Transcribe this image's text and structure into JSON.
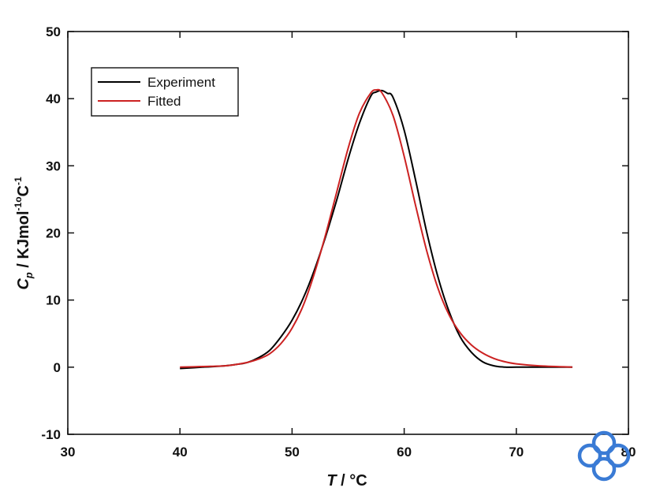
{
  "chart_data": {
    "type": "line",
    "xlabel": {
      "var": "T",
      "unit": " / °C"
    },
    "ylabel": {
      "var": "C",
      "sub": "p",
      "unit": " / KJmol",
      "sup1": "-1",
      "mid": "o",
      "unit2": "C",
      "sup2": "-1"
    },
    "xlim": [
      30,
      80
    ],
    "ylim": [
      -10,
      50
    ],
    "xticks": [
      30,
      40,
      50,
      60,
      70,
      80
    ],
    "yticks": [
      -10,
      0,
      10,
      20,
      30,
      40,
      50
    ],
    "xtick_labels": [
      "30",
      "40",
      "50",
      "60",
      "70",
      "80"
    ],
    "ytick_labels": [
      "-10",
      "0",
      "10",
      "20",
      "30",
      "40",
      "50"
    ],
    "grid": false,
    "legend_position": "top-left",
    "series": [
      {
        "name": "Experiment",
        "color": "#000000",
        "x": [
          40,
          42,
          44,
          45,
          46,
          47,
          48,
          49,
          50,
          51,
          52,
          53,
          54,
          55,
          56,
          57,
          57.5,
          58,
          58.5,
          59,
          60,
          61,
          62,
          63,
          64,
          65,
          66,
          67,
          68,
          69,
          70,
          72,
          75
        ],
        "y": [
          -0.2,
          0,
          0.2,
          0.4,
          0.7,
          1.4,
          2.5,
          4.5,
          7,
          10.3,
          14.5,
          19.5,
          25,
          31,
          36.3,
          40.3,
          41,
          41.2,
          40.8,
          40.2,
          35.3,
          28,
          20.2,
          13.5,
          8.3,
          4.5,
          2.2,
          0.8,
          0.2,
          0,
          0,
          0,
          0
        ]
      },
      {
        "name": "Fitted",
        "color": "#cc2222",
        "x": [
          40,
          42,
          44,
          45,
          46,
          47,
          48,
          49,
          50,
          51,
          52,
          53,
          54,
          55,
          56,
          57,
          57.5,
          58,
          59,
          60,
          61,
          62,
          63,
          64,
          65,
          66,
          67,
          68,
          69,
          70,
          72,
          75
        ],
        "y": [
          0,
          0.1,
          0.2,
          0.4,
          0.7,
          1.2,
          2,
          3.5,
          5.8,
          9.2,
          14,
          19.8,
          26.2,
          32.6,
          37.8,
          40.8,
          41.3,
          40.9,
          37.5,
          31.4,
          24.2,
          17.4,
          11.8,
          7.8,
          5.1,
          3.3,
          2.1,
          1.3,
          0.8,
          0.5,
          0.2,
          0
        ]
      }
    ]
  },
  "watermark": {
    "icon": "logo-icon",
    "color": "#3a7bd5"
  }
}
